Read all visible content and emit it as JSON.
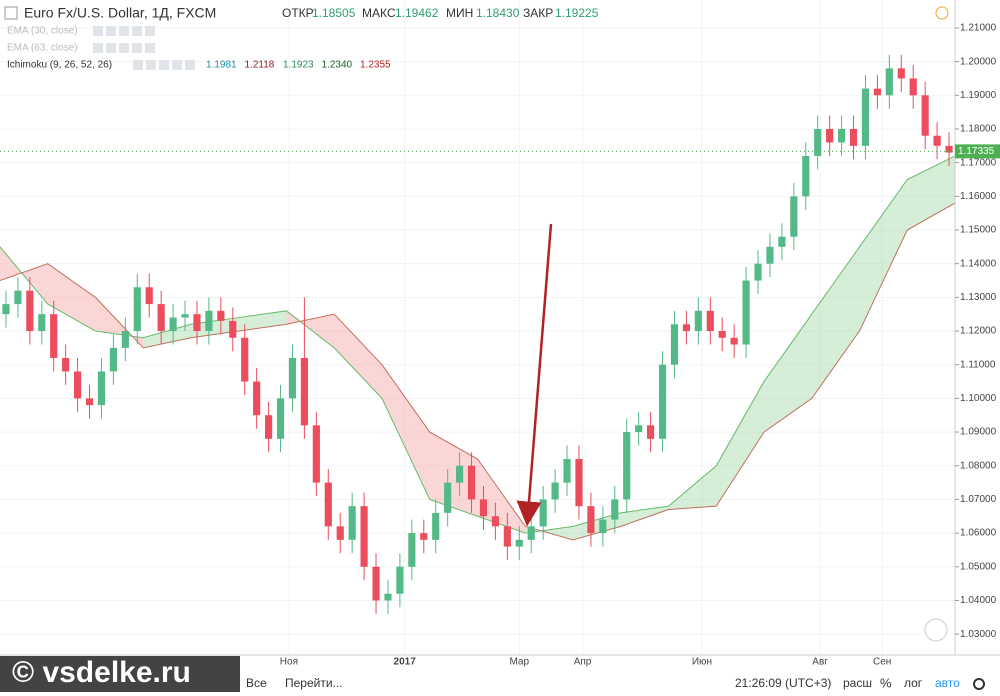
{
  "chart_data": {
    "type": "candlestick",
    "title": "Euro Fx/U.S. Dollar, 1Д, FXCM",
    "stats": [
      {
        "label": "ОТКР",
        "value": "1.18505"
      },
      {
        "label": "МАКС",
        "value": "1.19462"
      },
      {
        "label": "МИН",
        "value": "1.18430"
      },
      {
        "label": "ЗАКР",
        "value": "1.19225"
      }
    ],
    "indicators": [
      {
        "name": "EMA (30, close)",
        "values": []
      },
      {
        "name": "EMA (63, close)",
        "values": []
      },
      {
        "name": "Ichimoku (9, 26, 52, 26)",
        "values": [
          "1.1981",
          "1.2118",
          "1.1923",
          "1.2340",
          "1.2355"
        ],
        "colors": [
          "#1e8fa0",
          "#8b1a1a",
          "#2e8b57",
          "#1b5e20",
          "#b71c1c"
        ]
      }
    ],
    "open": [
      1.125,
      1.128,
      1.132,
      1.12,
      1.125,
      1.112,
      1.108,
      1.1,
      1.098,
      1.108,
      1.115,
      1.12,
      1.133,
      1.128,
      1.12,
      1.124,
      1.125,
      1.12,
      1.126,
      1.123,
      1.118,
      1.105,
      1.095,
      1.088,
      1.1,
      1.112,
      1.092,
      1.075,
      1.062,
      1.058,
      1.068,
      1.05,
      1.04,
      1.042,
      1.05,
      1.06,
      1.058,
      1.066,
      1.075,
      1.08,
      1.07,
      1.065,
      1.062,
      1.056,
      1.058,
      1.062,
      1.07,
      1.075,
      1.082,
      1.068,
      1.06,
      1.064,
      1.07,
      1.09,
      1.092,
      1.088,
      1.11,
      1.122,
      1.12,
      1.126,
      1.12,
      1.118,
      1.116,
      1.135,
      1.14,
      1.145,
      1.148,
      1.16,
      1.172,
      1.18,
      1.176,
      1.18,
      1.175,
      1.192,
      1.19,
      1.198,
      1.195,
      1.19,
      1.178,
      1.175
    ],
    "high": [
      1.132,
      1.136,
      1.136,
      1.129,
      1.129,
      1.116,
      1.112,
      1.104,
      1.112,
      1.119,
      1.124,
      1.137,
      1.137,
      1.132,
      1.128,
      1.129,
      1.129,
      1.13,
      1.13,
      1.127,
      1.122,
      1.109,
      1.099,
      1.104,
      1.116,
      1.13,
      1.096,
      1.079,
      1.066,
      1.072,
      1.072,
      1.054,
      1.046,
      1.054,
      1.064,
      1.064,
      1.07,
      1.079,
      1.084,
      1.084,
      1.074,
      1.069,
      1.066,
      1.062,
      1.066,
      1.074,
      1.079,
      1.086,
      1.086,
      1.072,
      1.068,
      1.074,
      1.094,
      1.096,
      1.096,
      1.114,
      1.126,
      1.126,
      1.13,
      1.13,
      1.124,
      1.122,
      1.139,
      1.144,
      1.149,
      1.152,
      1.164,
      1.176,
      1.184,
      1.184,
      1.184,
      1.184,
      1.196,
      1.196,
      1.202,
      1.202,
      1.199,
      1.194,
      1.182,
      1.179
    ],
    "low": [
      1.121,
      1.124,
      1.116,
      1.116,
      1.108,
      1.104,
      1.096,
      1.094,
      1.094,
      1.104,
      1.111,
      1.116,
      1.124,
      1.116,
      1.116,
      1.12,
      1.116,
      1.116,
      1.119,
      1.114,
      1.101,
      1.091,
      1.084,
      1.084,
      1.096,
      1.088,
      1.071,
      1.058,
      1.054,
      1.054,
      1.046,
      1.036,
      1.036,
      1.038,
      1.046,
      1.054,
      1.054,
      1.062,
      1.071,
      1.066,
      1.061,
      1.058,
      1.052,
      1.052,
      1.054,
      1.058,
      1.066,
      1.071,
      1.064,
      1.056,
      1.056,
      1.06,
      1.066,
      1.086,
      1.084,
      1.084,
      1.106,
      1.116,
      1.116,
      1.116,
      1.114,
      1.112,
      1.112,
      1.131,
      1.136,
      1.141,
      1.144,
      1.156,
      1.168,
      1.172,
      1.172,
      1.171,
      1.171,
      1.186,
      1.186,
      1.191,
      1.186,
      1.174,
      1.171,
      1.169
    ],
    "close": [
      1.128,
      1.132,
      1.12,
      1.125,
      1.112,
      1.108,
      1.1,
      1.098,
      1.108,
      1.115,
      1.12,
      1.133,
      1.128,
      1.12,
      1.124,
      1.125,
      1.12,
      1.126,
      1.123,
      1.118,
      1.105,
      1.095,
      1.088,
      1.1,
      1.112,
      1.092,
      1.075,
      1.062,
      1.058,
      1.068,
      1.05,
      1.04,
      1.042,
      1.05,
      1.06,
      1.058,
      1.066,
      1.075,
      1.08,
      1.07,
      1.065,
      1.062,
      1.056,
      1.058,
      1.062,
      1.07,
      1.075,
      1.082,
      1.068,
      1.06,
      1.064,
      1.07,
      1.09,
      1.092,
      1.088,
      1.11,
      1.122,
      1.12,
      1.126,
      1.12,
      1.118,
      1.116,
      1.135,
      1.14,
      1.145,
      1.148,
      1.16,
      1.172,
      1.18,
      1.176,
      1.18,
      1.175,
      1.192,
      1.19,
      1.198,
      1.195,
      1.19,
      1.178,
      1.175,
      1.173
    ],
    "up_color": "#53b987",
    "down_color": "#eb4d5c",
    "cloud": {
      "x": [
        0,
        4,
        8,
        12,
        16,
        20,
        24,
        28,
        32,
        36,
        40,
        44,
        48,
        52,
        56,
        60,
        64,
        68,
        72,
        76,
        80
      ],
      "span_a": [
        1.145,
        1.128,
        1.12,
        1.118,
        1.122,
        1.124,
        1.126,
        1.115,
        1.1,
        1.07,
        1.065,
        1.06,
        1.062,
        1.066,
        1.068,
        1.08,
        1.105,
        1.125,
        1.145,
        1.165,
        1.172
      ],
      "span_b": [
        1.135,
        1.14,
        1.13,
        1.115,
        1.118,
        1.12,
        1.122,
        1.125,
        1.11,
        1.09,
        1.082,
        1.062,
        1.058,
        1.062,
        1.067,
        1.068,
        1.09,
        1.1,
        1.12,
        1.15,
        1.158
      ],
      "up_color": "#a5d6a7",
      "down_color": "#f5a3a3"
    },
    "xlim": [
      0,
      80
    ],
    "xticks": [
      {
        "value": 24.2,
        "label": "Ноя"
      },
      {
        "value": 33.9,
        "label": "2017"
      },
      {
        "value": 43.5,
        "label": "Мар"
      },
      {
        "value": 48.8,
        "label": "Апр"
      },
      {
        "value": 58.8,
        "label": "Июн"
      },
      {
        "value": 68.7,
        "label": "Авг"
      },
      {
        "value": 73.9,
        "label": "Сен"
      }
    ],
    "ylim": [
      1.0238,
      1.2183
    ],
    "yticks": [
      {
        "value": 1.03,
        "label": "1.03000"
      },
      {
        "value": 1.04,
        "label": "1.04000"
      },
      {
        "value": 1.05,
        "label": "1.05000"
      },
      {
        "value": 1.06,
        "label": "1.06000"
      },
      {
        "value": 1.07,
        "label": "1.07000"
      },
      {
        "value": 1.08,
        "label": "1.08000"
      },
      {
        "value": 1.09,
        "label": "1.09000"
      },
      {
        "value": 1.1,
        "label": "1.10000"
      },
      {
        "value": 1.11,
        "label": "1.11000"
      },
      {
        "value": 1.12,
        "label": "1.12000"
      },
      {
        "value": 1.13,
        "label": "1.13000"
      },
      {
        "value": 1.14,
        "label": "1.14000"
      },
      {
        "value": 1.15,
        "label": "1.15000"
      },
      {
        "value": 1.16,
        "label": "1.16000"
      },
      {
        "value": 1.17,
        "label": "1.17000"
      },
      {
        "value": 1.18,
        "label": "1.18000"
      },
      {
        "value": 1.19,
        "label": "1.19000"
      },
      {
        "value": 1.2,
        "label": "1.20000"
      },
      {
        "value": 1.21,
        "label": "1.21000"
      }
    ],
    "last_price": 1.17335,
    "last_price_color": "#4caf50",
    "toolbar": {
      "range": "Все",
      "goto": "Перейти...",
      "time": "21:26:09 (UTC+3)",
      "ext": "расш",
      "percent": "%",
      "log": "лог",
      "auto": "авто"
    },
    "watermark": "© vsdelke.ru"
  }
}
